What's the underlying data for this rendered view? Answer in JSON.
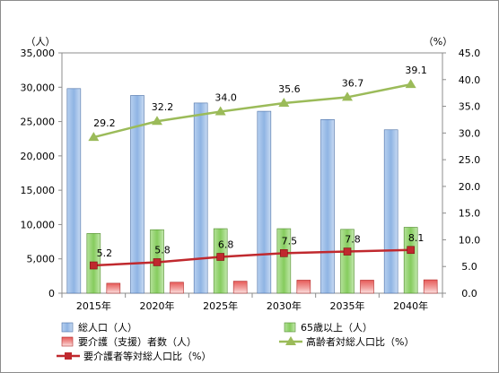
{
  "chart_data": {
    "type": "bar",
    "categories": [
      "2015年",
      "2020年",
      "2025年",
      "2030年",
      "2035年",
      "2040年"
    ],
    "y_left_unit": "（人）",
    "y_right_unit": "（%）",
    "ylim_left": [
      0,
      35000
    ],
    "ylim_right": [
      0,
      45.0
    ],
    "left_ticks": [
      "0",
      "5,000",
      "10,000",
      "15,000",
      "20,000",
      "25,000",
      "30,000",
      "35,000"
    ],
    "right_ticks": [
      "0.0",
      "5.0",
      "10.0",
      "15.0",
      "20.0",
      "25.0",
      "30.0",
      "35.0",
      "40.0",
      "45.0"
    ],
    "grid": false,
    "legend_position": "bottom",
    "series": [
      {
        "name": "総人口（人）",
        "type": "bar",
        "axis": "left",
        "color": "#8fb4e3",
        "values": [
          29800,
          28800,
          27700,
          26500,
          25300,
          23800
        ]
      },
      {
        "name": "65歳以上（人）",
        "type": "bar",
        "axis": "left",
        "color": "#8fd16a",
        "values": [
          8700,
          9250,
          9400,
          9400,
          9300,
          9600
        ]
      },
      {
        "name": "要介護（支援）者数（人）",
        "type": "bar",
        "axis": "left",
        "color": "#e0605e",
        "values": [
          1450,
          1600,
          1750,
          1900,
          1900,
          1950
        ]
      },
      {
        "name": "高齢者対総人口比（%）",
        "type": "line",
        "axis": "right",
        "color": "#9bbb59",
        "marker": "triangle",
        "values": [
          29.2,
          32.2,
          34.0,
          35.6,
          36.7,
          39.1
        ],
        "labels": [
          "29.2",
          "32.2",
          "34.0",
          "35.6",
          "36.7",
          "39.1"
        ]
      },
      {
        "name": "要介護者等対総人口比（%）",
        "type": "line",
        "axis": "right",
        "color": "#c0292e",
        "marker": "square",
        "values": [
          5.2,
          5.8,
          6.8,
          7.5,
          7.8,
          8.1
        ],
        "labels": [
          "5.2",
          "5.8",
          "6.8",
          "7.5",
          "7.8",
          "8.1"
        ]
      }
    ]
  }
}
